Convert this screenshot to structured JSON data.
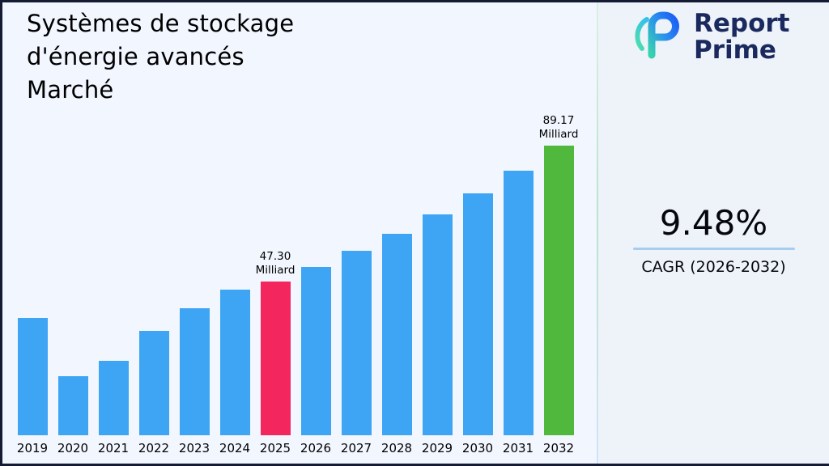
{
  "header": {
    "title_lines": [
      "Systèmes de stockage",
      "d'énergie avancés",
      "Marché"
    ]
  },
  "logo": {
    "line1": "Report",
    "line2": "Prime"
  },
  "cagr": {
    "value": "9.48%",
    "label": "CAGR (2026-2032)"
  },
  "chart_data": {
    "type": "bar",
    "title": "Systèmes de stockage d'énergie avancés Marché",
    "xlabel": "",
    "ylabel": "",
    "unit_label": "Milliard",
    "categories": [
      "2019",
      "2020",
      "2021",
      "2022",
      "2023",
      "2024",
      "2025",
      "2026",
      "2027",
      "2028",
      "2029",
      "2030",
      "2031",
      "2032"
    ],
    "values": [
      36.1,
      18.2,
      22.9,
      32.2,
      39.2,
      44.9,
      47.3,
      51.78,
      56.69,
      62.07,
      67.95,
      74.39,
      81.45,
      89.17
    ],
    "labeled_points": [
      {
        "category": "2025",
        "label_value": "47.30",
        "label_unit": "Milliard"
      },
      {
        "category": "2032",
        "label_value": "89.17",
        "label_unit": "Milliard"
      }
    ],
    "colors": {
      "default": "#3da5f4",
      "accent_pink": "#f4265e",
      "accent_green": "#50b83c"
    },
    "bar_color_overrides": {
      "2025": "#f4265e",
      "2032": "#50b83c"
    },
    "ylim": [
      0,
      89.17
    ],
    "grid": false,
    "legend": "none"
  }
}
